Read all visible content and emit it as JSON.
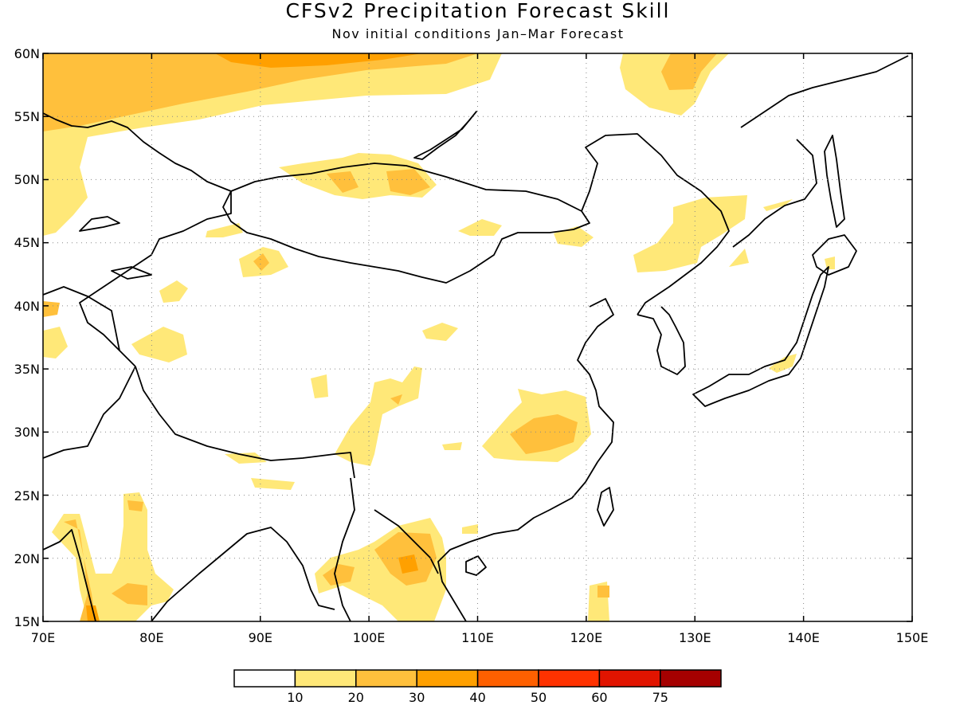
{
  "title": "CFSv2 Precipitation Forecast Skill",
  "subtitle": "Nov initial conditions  Jan–Mar Forecast",
  "map": {
    "lon_range": [
      70,
      150
    ],
    "lat_range": [
      15,
      60
    ],
    "lon_ticks": [
      "70E",
      "80E",
      "90E",
      "100E",
      "110E",
      "120E",
      "130E",
      "140E",
      "150E"
    ],
    "lat_ticks": [
      "60N",
      "55N",
      "50N",
      "45N",
      "40N",
      "35N",
      "30N",
      "25N",
      "20N",
      "15N"
    ],
    "grid": true
  },
  "colorbar": {
    "colors": [
      "#ffffff",
      "#ffe878",
      "#ffc03c",
      "#ffa000",
      "#ff6000",
      "#ff3200",
      "#e11400",
      "#a50000"
    ],
    "labels": [
      "10",
      "20",
      "30",
      "40",
      "50",
      "60",
      "75"
    ]
  }
}
